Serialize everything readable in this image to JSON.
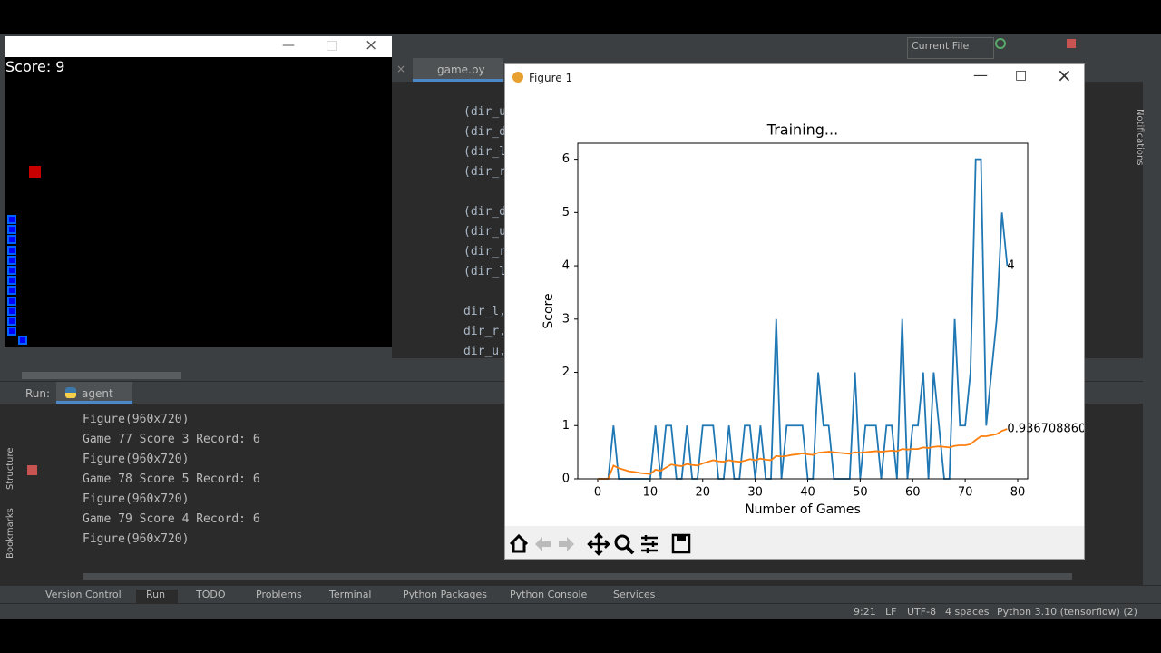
{
  "game_window": {
    "score_label": "Score: 9"
  },
  "toolbar": {
    "run_config": "Current File"
  },
  "editor": {
    "tab": "game.py",
    "code_lines": [
      "(dir_u",
      "(dir_d",
      "(dir_l",
      "(dir_r",
      "(dir_d",
      "(dir_u",
      "(dir_r",
      "(dir_l",
      "dir_l,",
      "dir_r,",
      "dir_u,"
    ]
  },
  "figure_window": {
    "title": "Figure 1"
  },
  "chart_data": {
    "type": "line",
    "title": "Training...",
    "xlabel": "Number of Games",
    "ylabel": "Score",
    "xlim": [
      -3.8,
      81.9
    ],
    "xticks": [
      0,
      10,
      20,
      30,
      40,
      50,
      60,
      70,
      80
    ],
    "ylim": [
      0,
      6.3
    ],
    "yticks": [
      0,
      1,
      2,
      3,
      4,
      5,
      6
    ],
    "series": [
      {
        "color": "#1f77b4",
        "values": [
          0,
          0,
          0,
          1,
          0,
          0,
          0,
          0,
          0,
          0,
          0,
          1,
          0,
          1,
          1,
          0,
          0,
          1,
          0,
          0,
          1,
          1,
          1,
          0,
          0,
          1,
          0,
          0,
          1,
          1,
          0,
          1,
          0,
          0,
          3,
          0,
          1,
          1,
          1,
          1,
          0,
          0,
          2,
          1,
          1,
          0,
          0,
          0,
          0,
          2,
          0,
          1,
          1,
          1,
          0,
          1,
          1,
          0,
          3,
          0,
          1,
          1,
          2,
          0,
          2,
          1,
          0,
          0,
          3,
          1,
          1,
          2,
          6,
          6,
          1,
          2,
          3,
          5,
          4
        ]
      },
      {
        "color": "#ff7f0e",
        "values": [
          0,
          0,
          0,
          0.25,
          0.2,
          0.17,
          0.14,
          0.13,
          0.11,
          0.1,
          0.09,
          0.17,
          0.15,
          0.21,
          0.27,
          0.25,
          0.24,
          0.28,
          0.26,
          0.25,
          0.29,
          0.32,
          0.35,
          0.33,
          0.32,
          0.35,
          0.33,
          0.32,
          0.34,
          0.37,
          0.35,
          0.38,
          0.36,
          0.35,
          0.43,
          0.42,
          0.43,
          0.45,
          0.46,
          0.48,
          0.46,
          0.45,
          0.49,
          0.5,
          0.51,
          0.5,
          0.49,
          0.48,
          0.47,
          0.5,
          0.49,
          0.5,
          0.51,
          0.52,
          0.51,
          0.52,
          0.53,
          0.52,
          0.56,
          0.55,
          0.56,
          0.56,
          0.59,
          0.58,
          0.6,
          0.61,
          0.6,
          0.59,
          0.62,
          0.63,
          0.63,
          0.65,
          0.73,
          0.8,
          0.8,
          0.82,
          0.84,
          0.9,
          0.9367088607594937
        ]
      }
    ]
  },
  "run_panel": {
    "label": "Run:",
    "tab": "agent",
    "console": [
      "Figure(960x720)",
      "Game 77 Score 3 Record: 6",
      "Figure(960x720)",
      "Game 78 Score 5 Record: 6",
      "Figure(960x720)",
      "Game 79 Score 4 Record: 6",
      "Figure(960x720)"
    ]
  },
  "side_labels": [
    "Structure",
    "Bookmarks",
    "Notifications"
  ],
  "tool_windows": [
    "Version Control",
    "Run",
    "TODO",
    "Problems",
    "Terminal",
    "Python Packages",
    "Python Console",
    "Services"
  ],
  "status_bar": [
    "9:21",
    "LF",
    "UTF-8",
    "4 spaces",
    "Python 3.10 (tensorflow) (2)"
  ]
}
